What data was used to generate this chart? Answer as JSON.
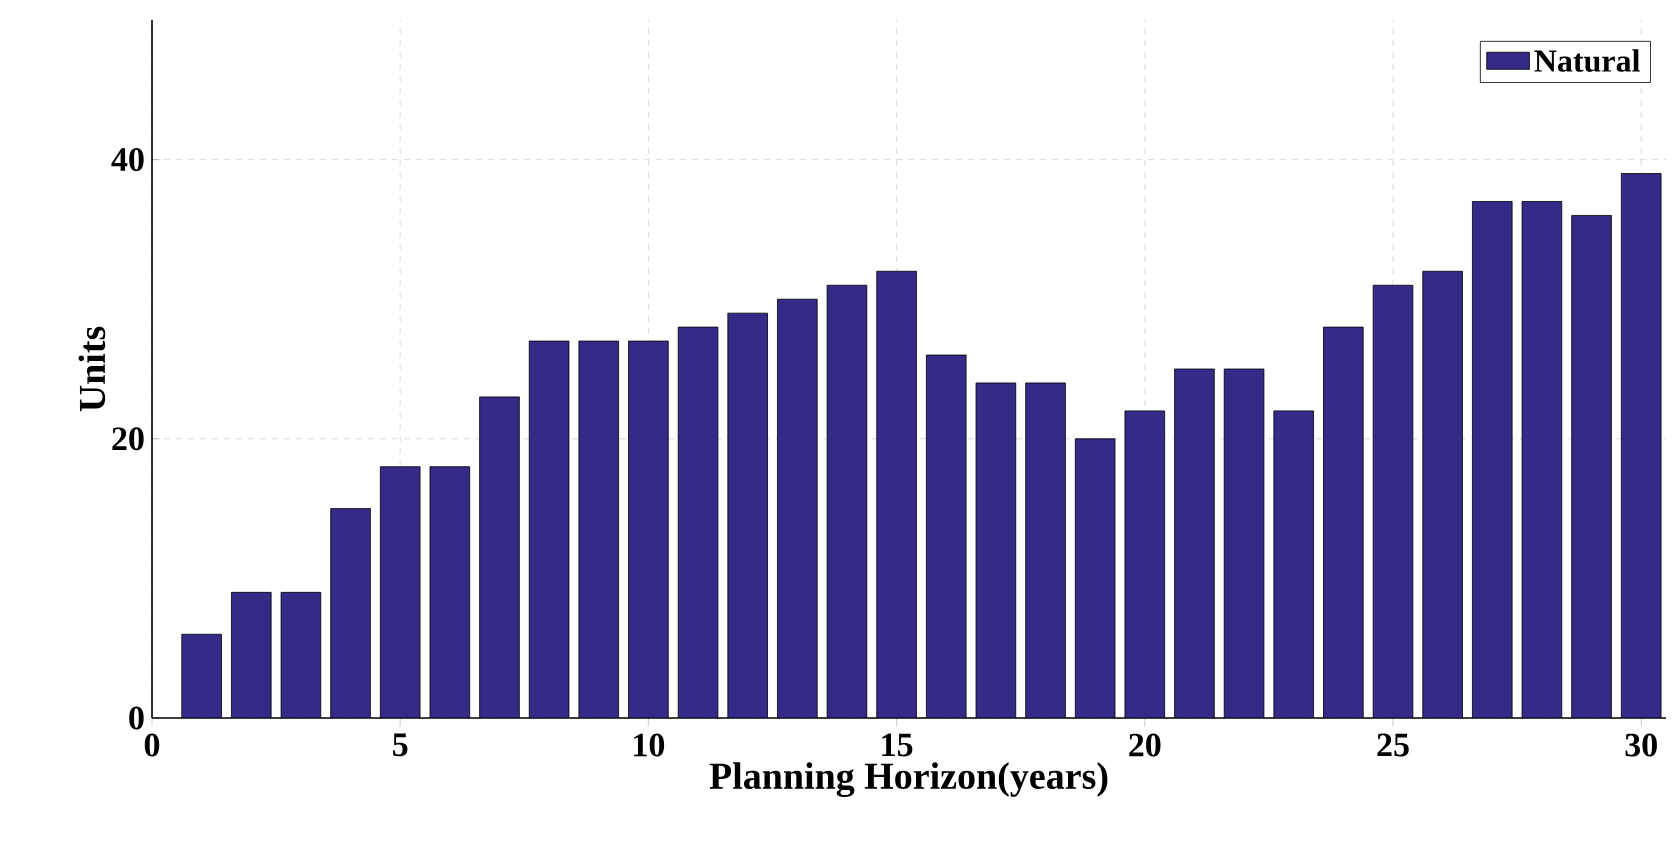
{
  "chart_data": {
    "type": "bar",
    "xlabel": "Planning Horizon(years)",
    "ylabel": "Units",
    "x": [
      1,
      2,
      3,
      4,
      5,
      6,
      7,
      8,
      9,
      10,
      11,
      12,
      13,
      14,
      15,
      16,
      17,
      18,
      19,
      20,
      21,
      22,
      23,
      24,
      25,
      26,
      27,
      28,
      29,
      30
    ],
    "series": [
      {
        "name": "Natural",
        "color": "#352a87",
        "values": [
          6,
          9,
          9,
          15,
          18,
          18,
          23,
          27,
          27,
          27,
          28,
          29,
          30,
          31,
          32,
          26,
          24,
          24,
          20,
          22,
          25,
          25,
          22,
          28,
          31,
          32,
          37,
          37,
          36,
          39
        ]
      }
    ],
    "xlim": [
      0,
      30.5
    ],
    "ylim": [
      0,
      50
    ],
    "xticks": [
      0,
      5,
      10,
      15,
      20,
      25,
      30
    ],
    "yticks": [
      0,
      20,
      40
    ],
    "grid": true,
    "legend": "top right"
  }
}
